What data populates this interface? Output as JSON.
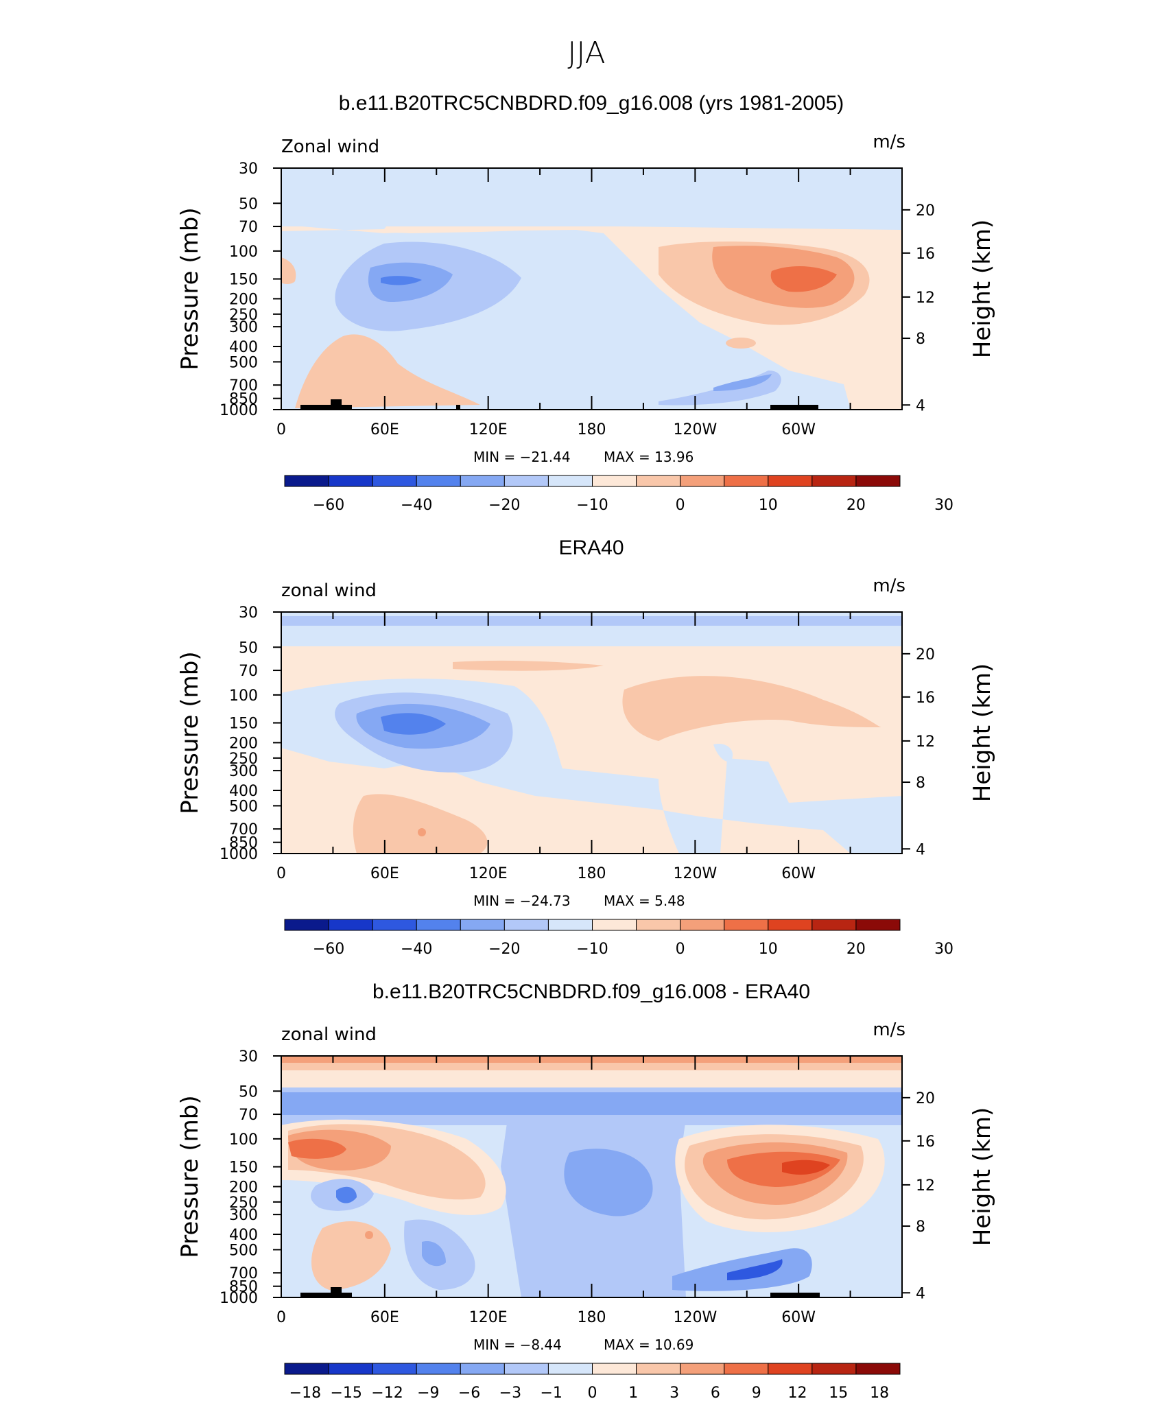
{
  "page": {
    "season": "JJA"
  },
  "legend_colors": {
    "abs": [
      "#0a1a8c",
      "#1737c9",
      "#2e58e0",
      "#5382ed",
      "#85a8f3",
      "#b2c8f8",
      "#d6e6fa",
      "#fde8d8",
      "#f9c7aa",
      "#f4a07a",
      "#ee7047",
      "#df4320",
      "#b82512",
      "#8b0a08"
    ],
    "diff": [
      "#0a1a8c",
      "#1737c9",
      "#2e58e0",
      "#5382ed",
      "#85a8f3",
      "#b2c8f8",
      "#d6e6fa",
      "#fde8d8",
      "#f9c7aa",
      "#f4a07a",
      "#ee7047",
      "#df4320",
      "#b82512",
      "#8b0a08"
    ]
  },
  "chart_data": [
    {
      "type": "heatmap",
      "title": "b.e11.B20TRC5CNBDRD.f09_g16.008 (yrs 1981-2005)",
      "variable_label": "Zonal wind",
      "units": "m/s",
      "ylabel": "Pressure (mb)",
      "ylabel_right": "Height (km)",
      "x_ticks": [
        "0",
        "60E",
        "120E",
        "180",
        "120W",
        "60W"
      ],
      "y_ticks": [
        "30",
        "50",
        "70",
        "100",
        "150",
        "200",
        "250",
        "300",
        "400",
        "500",
        "700",
        "850",
        "1000"
      ],
      "y2_ticks": [
        "4",
        "8",
        "12",
        "16",
        "20"
      ],
      "min_label": "MIN = −21.44",
      "max_label": "MAX = 13.96",
      "min": -21.44,
      "max": 13.96,
      "colorbar_labels": [
        "−60",
        "−40",
        "−20",
        "−10",
        "0",
        "10",
        "20",
        "30"
      ],
      "pattern": "model"
    },
    {
      "type": "heatmap",
      "title": "ERA40",
      "variable_label": "zonal wind",
      "units": "m/s",
      "ylabel": "Pressure (mb)",
      "ylabel_right": "Height (km)",
      "x_ticks": [
        "0",
        "60E",
        "120E",
        "180",
        "120W",
        "60W"
      ],
      "y_ticks": [
        "30",
        "50",
        "70",
        "100",
        "150",
        "200",
        "250",
        "300",
        "400",
        "500",
        "700",
        "850",
        "1000"
      ],
      "y2_ticks": [
        "4",
        "8",
        "12",
        "16",
        "20"
      ],
      "min_label": "MIN = −24.73",
      "max_label": "MAX = 5.48",
      "min": -24.73,
      "max": 5.48,
      "colorbar_labels": [
        "−60",
        "−40",
        "−20",
        "−10",
        "0",
        "10",
        "20",
        "30"
      ],
      "pattern": "obs"
    },
    {
      "type": "heatmap",
      "title": "b.e11.B20TRC5CNBDRD.f09_g16.008 - ERA40",
      "variable_label": "zonal wind",
      "units": "m/s",
      "ylabel": "Pressure (mb)",
      "ylabel_right": "Height (km)",
      "x_ticks": [
        "0",
        "60E",
        "120E",
        "180",
        "120W",
        "60W"
      ],
      "y_ticks": [
        "30",
        "50",
        "70",
        "100",
        "150",
        "200",
        "250",
        "300",
        "400",
        "500",
        "700",
        "850",
        "1000"
      ],
      "y2_ticks": [
        "4",
        "8",
        "12",
        "16",
        "20"
      ],
      "min_label": "MIN = −8.44",
      "max_label": "MAX = 10.69",
      "min": -8.44,
      "max": 10.69,
      "colorbar_labels": [
        "−18",
        "−15",
        "−12",
        "−9",
        "−6",
        "−3",
        "−1",
        "0",
        "1",
        "3",
        "6",
        "9",
        "12",
        "15",
        "18"
      ],
      "pattern": "diff"
    }
  ]
}
